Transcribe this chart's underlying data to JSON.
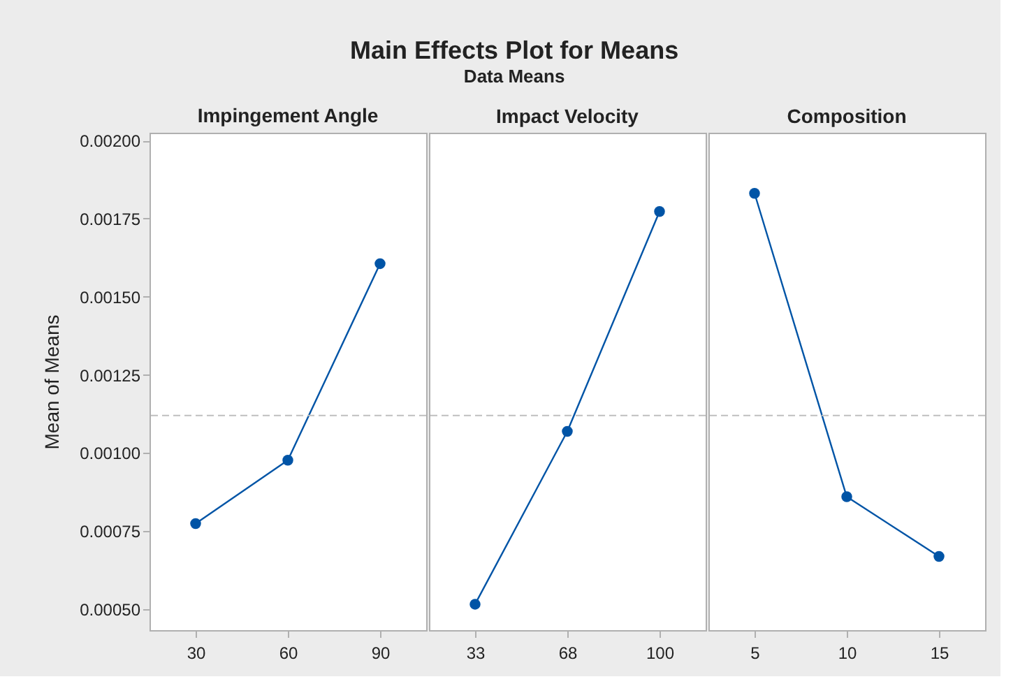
{
  "chart_data": [
    {
      "type": "line",
      "x2label": "Impingement Angle",
      "ylabel": "Mean of Means",
      "categories": [
        "30",
        "60",
        "90"
      ],
      "series": [
        {
          "color": "#0054a6",
          "values": [
            0.000774,
            0.000977,
            0.001606
          ]
        }
      ],
      "ylim": [
        0.000433,
        0.002025
      ],
      "yticks": [
        {
          "value": 0.0005,
          "label": "0.00050"
        },
        {
          "value": 0.00075,
          "label": "0.00075"
        },
        {
          "value": 0.001,
          "label": "0.00100"
        },
        {
          "value": 0.00125,
          "label": "0.00125"
        },
        {
          "value": 0.0015,
          "label": "0.00150"
        },
        {
          "value": 0.00175,
          "label": "0.00175"
        },
        {
          "value": 0.002,
          "label": "0.00200"
        }
      ],
      "ref_lines": [
        {
          "axis": "y",
          "value": 0.00112,
          "color": "#bfbfbf",
          "line_style": "dashed"
        }
      ],
      "grid": false,
      "legend": false,
      "marker": "circle",
      "line_style": "solid"
    },
    {
      "type": "line",
      "title": "Main Effects Plot for Means",
      "subtitle": "Data Means",
      "x2label": "Impact Velocity",
      "categories": [
        "33",
        "68",
        "100"
      ],
      "series": [
        {
          "color": "#0054a6",
          "values": [
            0.000516,
            0.001069,
            0.001773
          ]
        }
      ],
      "ylim": [
        0.000433,
        0.002025
      ],
      "ref_lines": [
        {
          "axis": "y",
          "value": 0.00112,
          "color": "#bfbfbf",
          "line_style": "dashed"
        }
      ],
      "grid": false,
      "legend": false,
      "marker": "circle",
      "line_style": "solid",
      "tick_labels": "x"
    },
    {
      "type": "line",
      "x2label": "Composition",
      "categories": [
        "5",
        "10",
        "15"
      ],
      "series": [
        {
          "color": "#0054a6",
          "values": [
            0.001831,
            0.00086,
            0.000669
          ]
        }
      ],
      "ylim": [
        0.000433,
        0.002025
      ],
      "ref_lines": [
        {
          "axis": "y",
          "value": 0.00112,
          "color": "#bfbfbf",
          "line_style": "dashed"
        }
      ],
      "grid": false,
      "legend": false,
      "marker": "circle",
      "line_style": "solid",
      "tick_labels": "x"
    }
  ]
}
